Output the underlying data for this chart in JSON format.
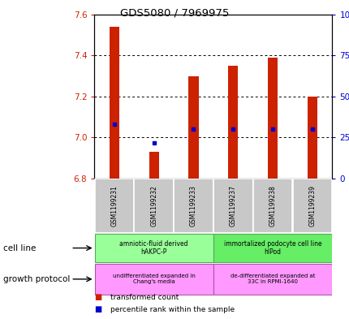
{
  "title": "GDS5080 / 7969975",
  "samples": [
    "GSM1199231",
    "GSM1199232",
    "GSM1199233",
    "GSM1199237",
    "GSM1199238",
    "GSM1199239"
  ],
  "bar_base": 6.8,
  "transformed_counts": [
    7.54,
    6.93,
    7.3,
    7.35,
    7.39,
    7.2
  ],
  "percentile_ranks": [
    33,
    22,
    30,
    30,
    30,
    30
  ],
  "ylim_left": [
    6.8,
    7.6
  ],
  "ylim_right": [
    0,
    100
  ],
  "yticks_left": [
    6.8,
    7.0,
    7.2,
    7.4,
    7.6
  ],
  "yticks_right": [
    0,
    25,
    50,
    75,
    100
  ],
  "ytick_labels_right": [
    "0",
    "25",
    "50",
    "75",
    "100%"
  ],
  "bar_color": "#cc2200",
  "dot_color": "#0000cc",
  "cell_line_groups": [
    {
      "label": "amniotic-fluid derived\nhAKPC-P",
      "samples": [
        0,
        1,
        2
      ],
      "color": "#99ff99"
    },
    {
      "label": "immortalized podocyte cell line\nhIPod",
      "samples": [
        3,
        4,
        5
      ],
      "color": "#66ee66"
    }
  ],
  "growth_protocol_groups": [
    {
      "label": "undifferentiated expanded in\nChang's media",
      "samples": [
        0,
        1,
        2
      ],
      "color": "#ff99ff"
    },
    {
      "label": "de-differentiated expanded at\n33C in RPMI-1640",
      "samples": [
        3,
        4,
        5
      ],
      "color": "#ff99ff"
    }
  ],
  "legend_items": [
    {
      "label": "transformed count",
      "color": "#cc2200"
    },
    {
      "label": "percentile rank within the sample",
      "color": "#0000cc"
    }
  ],
  "cell_line_label": "cell line",
  "growth_protocol_label": "growth protocol",
  "background_color": "#ffffff",
  "tick_color_left": "#cc2200",
  "tick_color_right": "#0000cc",
  "sample_box_color": "#c8c8c8",
  "sample_box_edge": "#888888"
}
